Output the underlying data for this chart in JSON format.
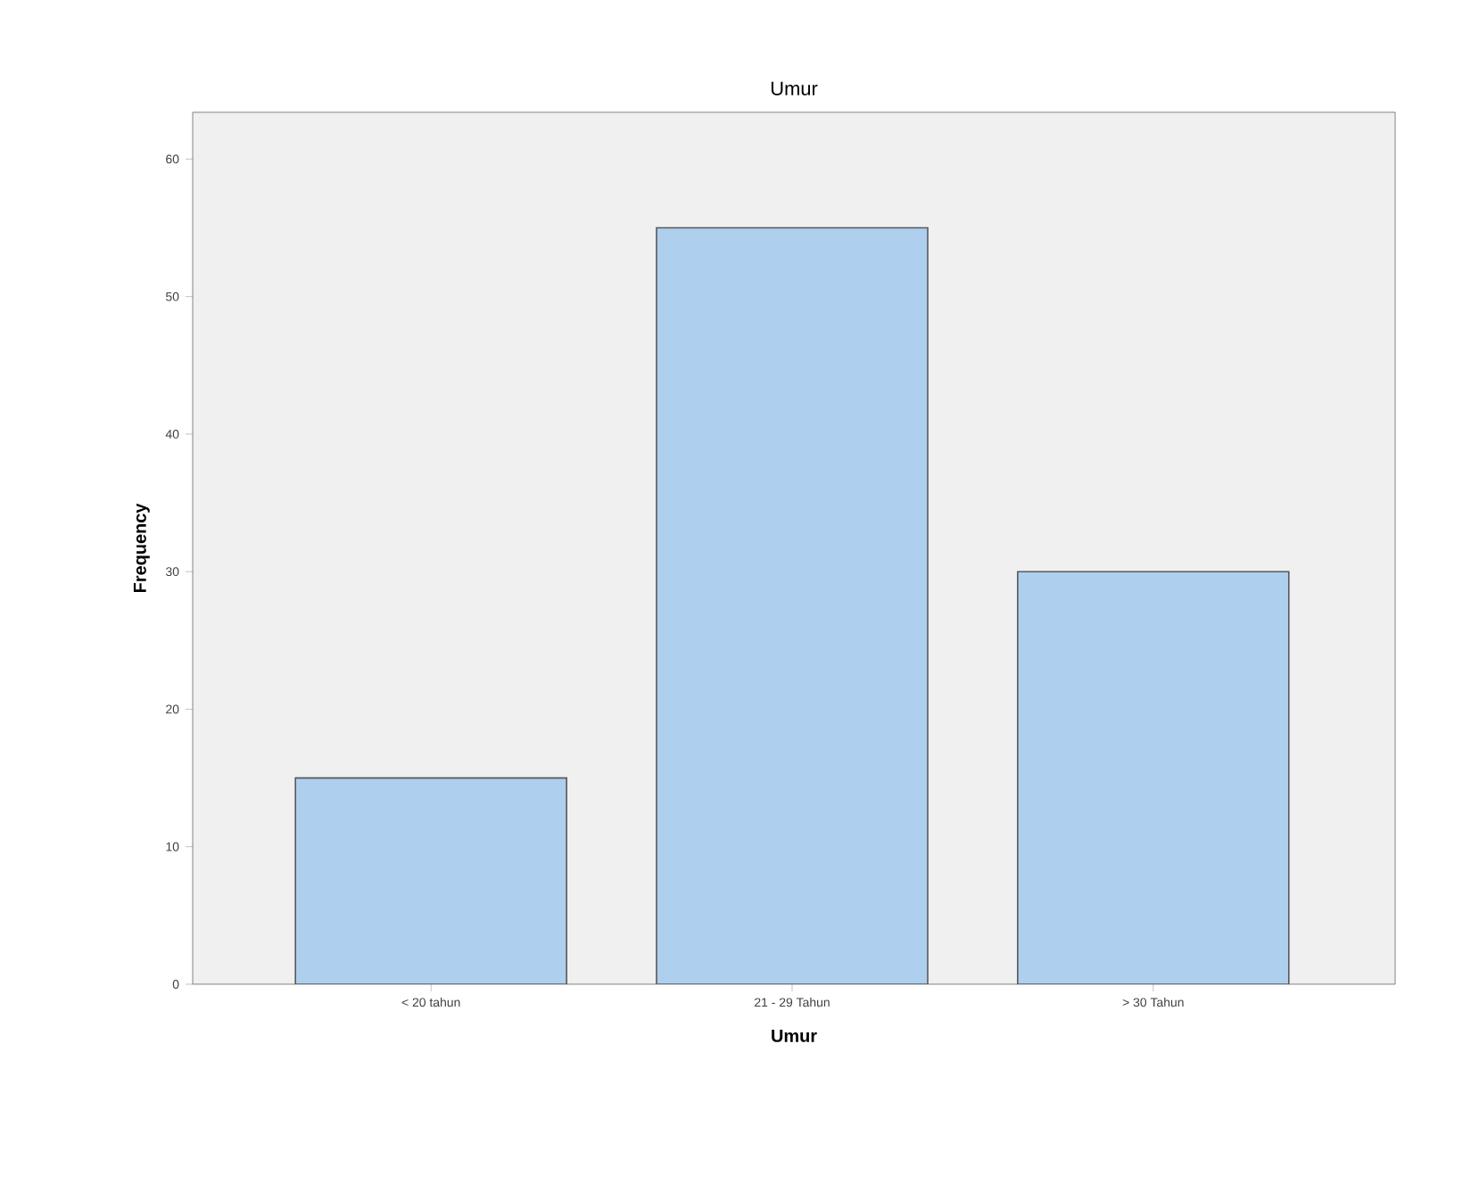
{
  "chart_data": {
    "type": "bar",
    "title": "Umur",
    "xlabel": "Umur",
    "ylabel": "Frequency",
    "categories": [
      "< 20 tahun",
      "21 - 29 Tahun",
      "> 30 Tahun"
    ],
    "values": [
      15,
      55,
      30
    ],
    "color": "#aecfee",
    "ylim": [
      0,
      63.4
    ],
    "yticks": [
      0,
      10,
      20,
      30,
      40,
      50,
      60
    ],
    "grid": false
  }
}
